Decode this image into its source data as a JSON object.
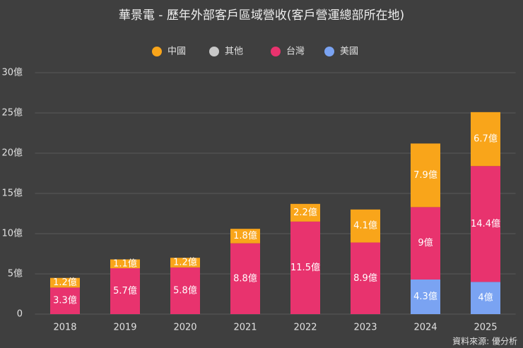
{
  "chart_data": {
    "type": "stacked-bar",
    "title": "華景電 - 歷年外部客戶區域營收(客戶營運總部所在地)",
    "source": "資料來源: 優分析",
    "categories": [
      "2018",
      "2019",
      "2020",
      "2021",
      "2022",
      "2023",
      "2024",
      "2025"
    ],
    "series": [
      {
        "name": "中國",
        "color": "#f9a51a",
        "values": [
          1.2,
          1.1,
          1.2,
          1.8,
          2.2,
          4.1,
          7.9,
          6.7
        ],
        "value_labels": [
          "1.2億",
          "1.1億",
          "1.2億",
          "1.8億",
          "2.2億",
          "4.1億",
          "7.9億",
          "6.7億"
        ]
      },
      {
        "name": "其他",
        "color": "#c8c8c8",
        "values": [
          null,
          null,
          null,
          null,
          null,
          null,
          null,
          null
        ]
      },
      {
        "name": "台灣",
        "color": "#e8336e",
        "values": [
          3.3,
          5.7,
          5.8,
          8.8,
          11.5,
          8.9,
          9,
          14.4
        ],
        "value_labels": [
          "3.3億",
          "5.7億",
          "5.8億",
          "8.8億",
          "11.5億",
          "8.9億",
          "9億",
          "14.4億"
        ]
      },
      {
        "name": "美國",
        "color": "#7aa3f2",
        "values": [
          null,
          null,
          null,
          null,
          null,
          null,
          4.3,
          4
        ],
        "value_labels": [
          null,
          null,
          null,
          null,
          null,
          null,
          "4.3億",
          "4億"
        ]
      }
    ],
    "ylim": [
      0,
      30
    ],
    "yticks": [
      0,
      {
        "value": 5,
        "label": "5億"
      },
      {
        "value": 10,
        "label": "10億"
      },
      {
        "value": 15,
        "label": "15億"
      },
      {
        "value": 20,
        "label": "20億"
      },
      {
        "value": 25,
        "label": "25億"
      },
      {
        "value": 30,
        "label": "30億"
      }
    ],
    "grid": true
  }
}
